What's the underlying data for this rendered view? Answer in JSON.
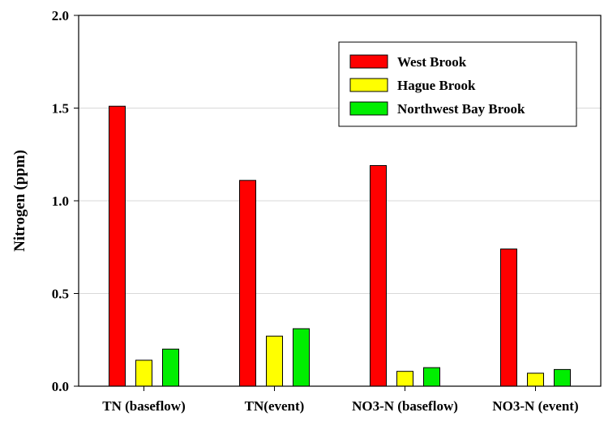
{
  "chart_data": {
    "type": "bar",
    "title": "",
    "xlabel": "",
    "ylabel": "Nitrogen (ppm)",
    "ylim": [
      0,
      2.0
    ],
    "yticks": [
      "0.0",
      "0.5",
      "1.0",
      "1.5",
      "2.0"
    ],
    "ytick_values": [
      0,
      0.5,
      1.0,
      1.5,
      2.0
    ],
    "grid": true,
    "legend_position": "top-right",
    "categories": [
      "TN (baseflow)",
      "TN(event)",
      "NO3-N (baseflow)",
      "NO3-N (event)"
    ],
    "series": [
      {
        "name": "West Brook",
        "color": "#ff0000",
        "values": [
          1.51,
          1.11,
          1.19,
          0.74
        ]
      },
      {
        "name": "Hague Brook",
        "color": "#ffff00",
        "values": [
          0.14,
          0.27,
          0.08,
          0.07
        ]
      },
      {
        "name": "Northwest Bay Brook",
        "color": "#00ee00",
        "values": [
          0.2,
          0.31,
          0.1,
          0.09
        ]
      }
    ]
  }
}
